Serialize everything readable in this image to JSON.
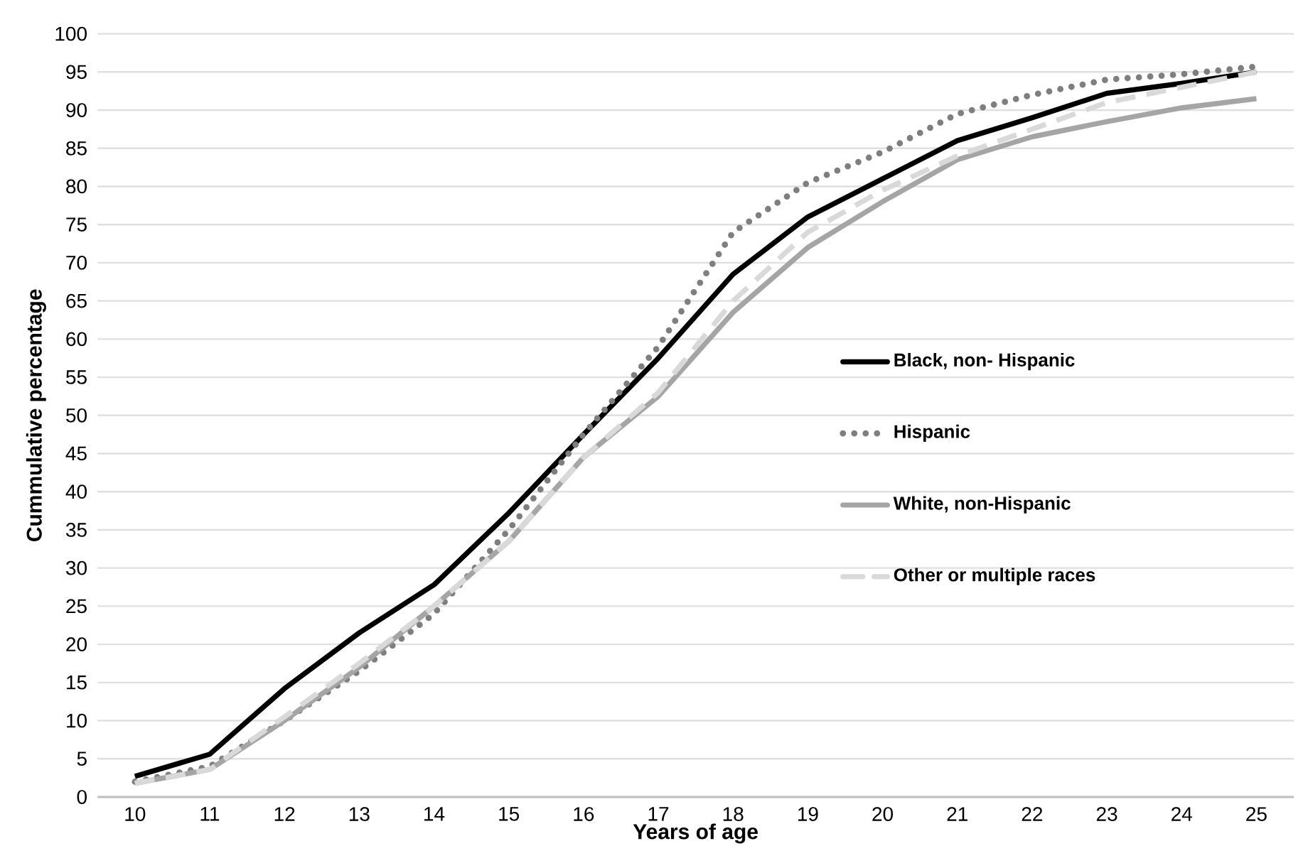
{
  "chart_data": {
    "type": "line",
    "xlabel": "Years of age",
    "ylabel": "Cummulative percentage",
    "categories": [
      "10",
      "11",
      "12",
      "13",
      "14",
      "15",
      "16",
      "17",
      "18",
      "19",
      "20",
      "21",
      "22",
      "23",
      "24",
      "25"
    ],
    "ylim": [
      0,
      100
    ],
    "yticks": [
      0,
      5,
      10,
      15,
      20,
      25,
      30,
      35,
      40,
      45,
      50,
      55,
      60,
      65,
      70,
      75,
      80,
      85,
      90,
      95,
      100
    ],
    "grid": "y",
    "legend": "right",
    "marker": "none",
    "series": [
      {
        "name": "Black, non- Hispanic",
        "color": "#000000",
        "line_style": "solid",
        "values": [
          2.7,
          5.6,
          14.2,
          21.5,
          27.8,
          37.2,
          47.5,
          57.5,
          68.5,
          76,
          81,
          86,
          89,
          92.2,
          93.5,
          95
        ]
      },
      {
        "name": "Hispanic",
        "color": "#7f7f7f",
        "line_style": "dotted",
        "values": [
          2,
          4,
          10,
          16.5,
          24,
          35,
          47.5,
          59,
          74,
          80.5,
          84.5,
          89.5,
          92,
          94,
          94.7,
          95.7
        ]
      },
      {
        "name": "White, non-Hispanic",
        "color": "#a5a5a5",
        "line_style": "solid",
        "values": [
          1.8,
          3.6,
          10,
          17,
          25,
          33.5,
          44.5,
          52.5,
          63.5,
          72,
          78,
          83.5,
          86.5,
          88.5,
          90.3,
          91.5
        ]
      },
      {
        "name": "Other or multiple races",
        "color": "#d9d9d9",
        "line_style": "dashed",
        "values": [
          1.8,
          3.6,
          10.5,
          17.5,
          25,
          33.5,
          44.5,
          53,
          65,
          74,
          79.5,
          84,
          87.5,
          91,
          93,
          95
        ]
      }
    ]
  }
}
